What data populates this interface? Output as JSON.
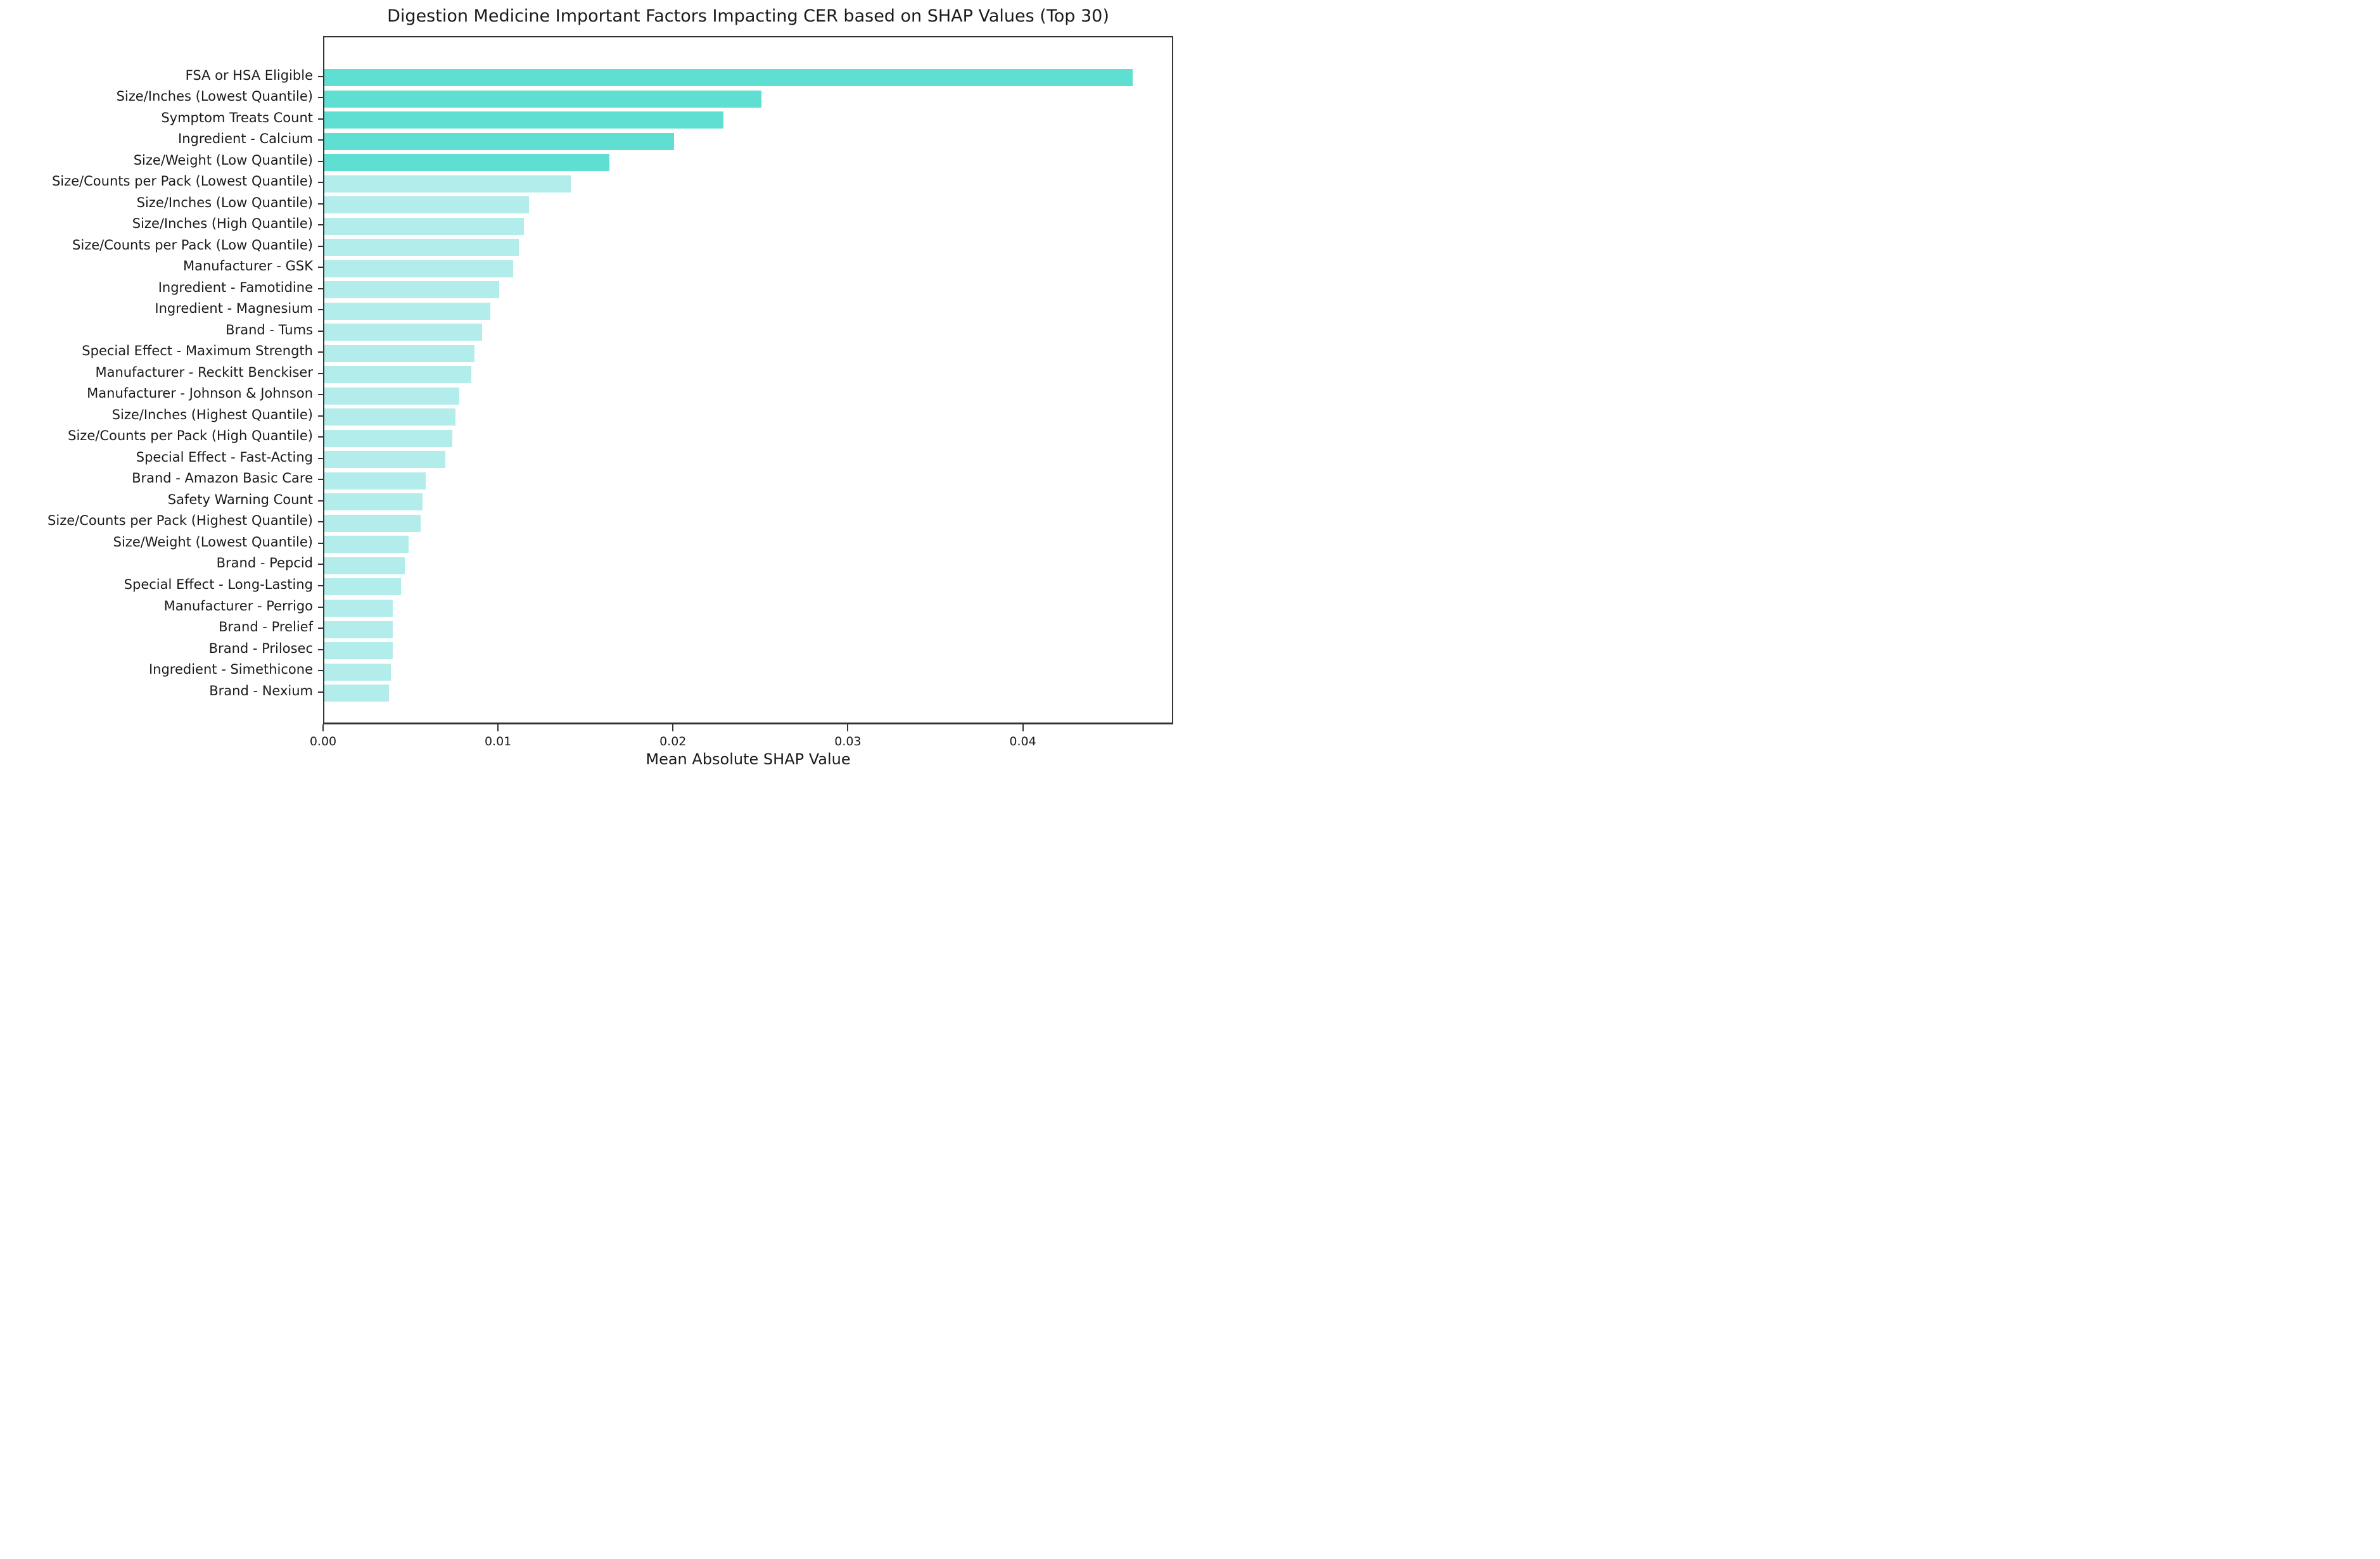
{
  "figure": {
    "title": "Digestion Medicine Important Factors Impacting CER based on SHAP Values (Top 30)",
    "xlabel": "Mean Absolute SHAP Value"
  },
  "colors": {
    "bar_highlight": "#5fdfd2",
    "bar_normal": "#b2edec",
    "spine": "#333333",
    "text": "#1a1a1a",
    "background": "#ffffff"
  },
  "chart_data": {
    "type": "bar",
    "orientation": "horizontal",
    "title": "Digestion Medicine Important Factors Impacting CER based on SHAP Values (Top 30)",
    "xlabel": "Mean Absolute SHAP Value",
    "ylabel": "",
    "categories": [
      "FSA or HSA Eligible",
      "Size/Inches (Lowest Quantile)",
      "Symptom Treats Count",
      "Ingredient - Calcium",
      "Size/Weight (Low Quantile)",
      "Size/Counts per Pack (Lowest Quantile)",
      "Size/Inches (Low Quantile)",
      "Size/Inches (High Quantile)",
      "Size/Counts per Pack (Low Quantile)",
      "Manufacturer - GSK",
      "Ingredient - Famotidine",
      "Ingredient - Magnesium",
      "Brand - Tums",
      "Special Effect - Maximum Strength",
      "Manufacturer - Reckitt Benckiser",
      "Manufacturer - Johnson & Johnson",
      "Size/Inches (Highest Quantile)",
      "Size/Counts per Pack (High Quantile)",
      "Special Effect - Fast-Acting",
      "Brand - Amazon Basic Care",
      "Safety Warning Count",
      "Size/Counts per Pack (Highest Quantile)",
      "Size/Weight (Lowest Quantile)",
      "Brand - Pepcid",
      "Special Effect - Long-Lasting",
      "Manufacturer - Perrigo",
      "Brand - Prelief",
      "Brand - Prilosec",
      "Ingredient - Simethicone",
      "Brand - Nexium"
    ],
    "values": [
      0.0462,
      0.025,
      0.0228,
      0.02,
      0.0163,
      0.0141,
      0.0117,
      0.0114,
      0.0111,
      0.0108,
      0.01,
      0.0095,
      0.009,
      0.0086,
      0.0084,
      0.0077,
      0.0075,
      0.0073,
      0.0069,
      0.0058,
      0.0056,
      0.0055,
      0.0048,
      0.0046,
      0.0044,
      0.0039,
      0.0039,
      0.0039,
      0.0038,
      0.0037
    ],
    "highlight_top_n": 5,
    "bar_color_top5": "#5fdfd2",
    "bar_color_rest": "#b2edec",
    "xlim": [
      0,
      0.0486
    ],
    "x_ticks": [
      0,
      0.01,
      0.02,
      0.03,
      0.04
    ],
    "x_tick_labels": [
      "0.00",
      "0.01",
      "0.02",
      "0.03",
      "0.04"
    ],
    "grid": false,
    "legend": null
  }
}
